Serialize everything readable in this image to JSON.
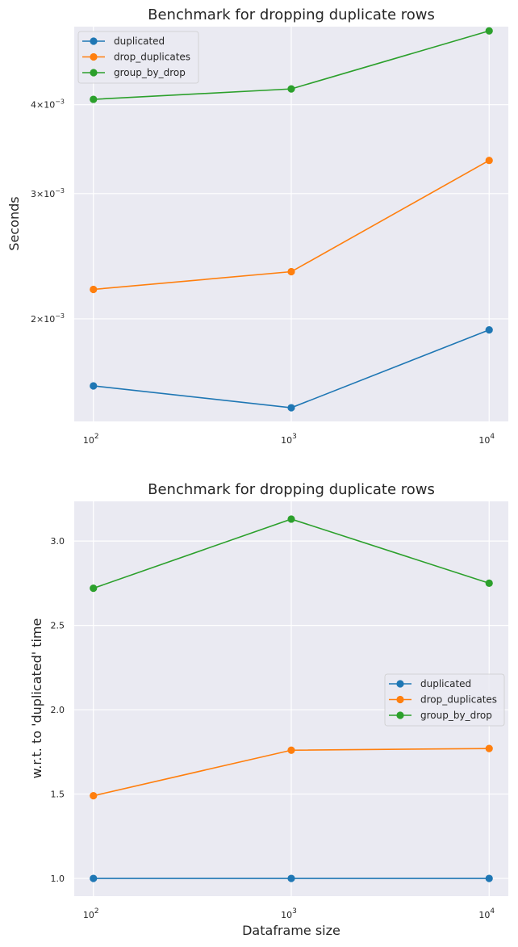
{
  "chart_data": [
    {
      "type": "line",
      "title": "Benchmark for dropping duplicate rows",
      "xlabel": "",
      "ylabel": "Seconds",
      "xscale": "log",
      "yscale": "log",
      "x": [
        100,
        1000,
        10000
      ],
      "x_tick_labels": [
        {
          "base": "10",
          "exp": "2"
        },
        {
          "base": "10",
          "exp": "3"
        },
        {
          "base": "10",
          "exp": "4"
        }
      ],
      "y_ticks": [
        0.002,
        0.003,
        0.004
      ],
      "y_tick_labels": [
        {
          "base": "2×10",
          "exp": "−3"
        },
        {
          "base": "3×10",
          "exp": "−3"
        },
        {
          "base": "4×10",
          "exp": "−3"
        }
      ],
      "xlim": [
        80,
        12500
      ],
      "ylim": [
        0.001435,
        0.00515
      ],
      "legend_position": "upper-left",
      "grid": true,
      "series": [
        {
          "name": "duplicated",
          "color": "#1f77b4",
          "values": [
            0.00161,
            0.0015,
            0.00193
          ]
        },
        {
          "name": "drop_duplicates",
          "color": "#ff7f0e",
          "values": [
            0.0022,
            0.00233,
            0.00334
          ]
        },
        {
          "name": "group_by_drop",
          "color": "#2ca02c",
          "values": [
            0.00407,
            0.00421,
            0.00508
          ]
        }
      ]
    },
    {
      "type": "line",
      "title": "Benchmark for dropping duplicate rows",
      "xlabel": "Dataframe size",
      "ylabel": "w.r.t. to 'duplicated' time",
      "xscale": "log",
      "yscale": "linear",
      "x": [
        100,
        1000,
        10000
      ],
      "x_tick_labels": [
        {
          "base": "10",
          "exp": "2"
        },
        {
          "base": "10",
          "exp": "3"
        },
        {
          "base": "10",
          "exp": "4"
        }
      ],
      "y_ticks": [
        1.0,
        1.5,
        2.0,
        2.5,
        3.0
      ],
      "y_tick_labels": [
        "1.0",
        "1.5",
        "2.0",
        "2.5",
        "3.0"
      ],
      "xlim": [
        80,
        12500
      ],
      "ylim": [
        0.895,
        3.235
      ],
      "legend_position": "center-right",
      "grid": true,
      "series": [
        {
          "name": "duplicated",
          "color": "#1f77b4",
          "values": [
            1.0,
            1.0,
            1.0
          ]
        },
        {
          "name": "drop_duplicates",
          "color": "#ff7f0e",
          "values": [
            1.49,
            1.76,
            1.77
          ]
        },
        {
          "name": "group_by_drop",
          "color": "#2ca02c",
          "values": [
            2.72,
            3.13,
            2.75
          ]
        }
      ]
    }
  ]
}
